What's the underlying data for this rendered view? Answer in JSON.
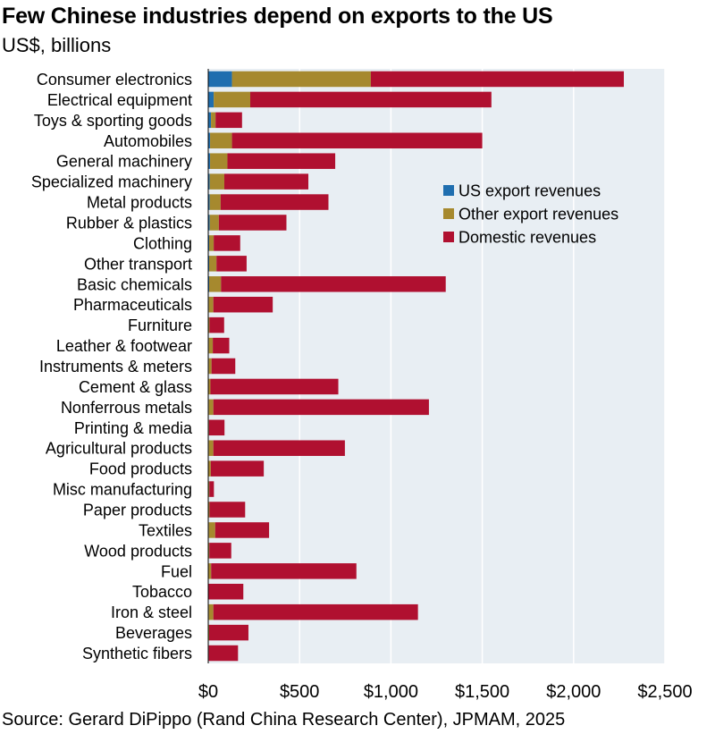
{
  "chart_data": {
    "type": "bar",
    "orientation": "horizontal",
    "stacked": true,
    "title": "Few Chinese industries depend on exports to the US",
    "subtitle": "US$, billions",
    "source": "Source: Gerard DiPippo (Rand China Research Center), JPMAM, 2025",
    "xlim": [
      0,
      2500
    ],
    "xticks": [
      "$0",
      "$500",
      "$1,000",
      "$1,500",
      "$2,000",
      "$2,500"
    ],
    "xtick_values": [
      0,
      500,
      1000,
      1500,
      2000,
      2500
    ],
    "legend_position": "right-center",
    "categories": [
      "Consumer electronics",
      "Electrical equipment",
      "Toys & sporting goods",
      "Automobiles",
      "General machinery",
      "Specialized machinery",
      "Metal products",
      "Rubber & plastics",
      "Clothing",
      "Other transport",
      "Basic chemicals",
      "Pharmaceuticals",
      "Furniture",
      "Leather & footwear",
      "Instruments & meters",
      "Cement & glass",
      "Nonferrous metals",
      "Printing & media",
      "Agricultural products",
      "Food products",
      "Misc manufacturing",
      "Paper products",
      "Textiles",
      "Wood products",
      "Fuel",
      "Tobacco",
      "Iron & steel",
      "Beverages",
      "Synthetic fibers"
    ],
    "series": [
      {
        "name": "US export revenues",
        "color": "#1f6eaf",
        "values": [
          130,
          30,
          15,
          10,
          10,
          8,
          8,
          8,
          5,
          5,
          5,
          3,
          2,
          3,
          3,
          2,
          3,
          1,
          3,
          2,
          1,
          1,
          3,
          1,
          1,
          0,
          3,
          0,
          0
        ]
      },
      {
        "name": "Other export revenues",
        "color": "#a6892e",
        "values": [
          760,
          200,
          25,
          120,
          95,
          80,
          60,
          50,
          25,
          40,
          65,
          25,
          5,
          22,
          15,
          10,
          25,
          3,
          25,
          12,
          5,
          6,
          35,
          5,
          15,
          2,
          25,
          5,
          3
        ]
      },
      {
        "name": "Domestic revenues",
        "color": "#b01030",
        "values": [
          1385,
          1320,
          145,
          1370,
          590,
          460,
          590,
          370,
          145,
          165,
          1230,
          325,
          80,
          90,
          130,
          700,
          1180,
          85,
          720,
          290,
          25,
          195,
          295,
          120,
          795,
          190,
          1120,
          215,
          160
        ]
      }
    ]
  }
}
